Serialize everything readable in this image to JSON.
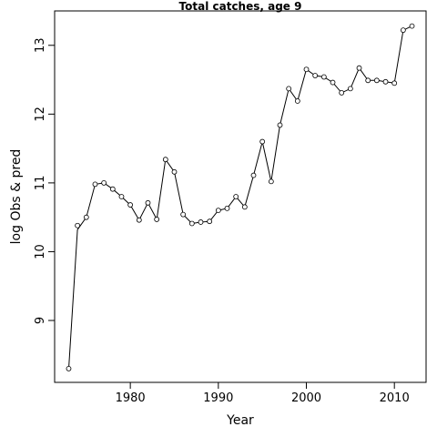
{
  "chart_data": {
    "type": "line",
    "title": "Total catches, age 9",
    "xlabel": "Year",
    "ylabel": "log Obs & pred",
    "xlim": [
      1971.4,
      1973.0
    ],
    "ylim": [
      8.1,
      13.5
    ],
    "x_ticks": [
      1980,
      1990,
      2000,
      2010
    ],
    "y_ticks": [
      9,
      10,
      11,
      12,
      13
    ],
    "x_tick_labels": [
      "1980",
      "1990",
      "2000",
      "2010"
    ],
    "y_tick_labels": [
      "9",
      "10",
      "11",
      "12",
      "13"
    ],
    "grid": false,
    "series": [
      {
        "x": [
          1973,
          1974,
          1975,
          1976,
          1977,
          1978,
          1979,
          1980,
          1981,
          1982,
          1983,
          1984,
          1985,
          1986,
          1987,
          1988,
          1989,
          1990,
          1991,
          1992,
          1993,
          1994,
          1995,
          1996,
          1997,
          1998,
          1999,
          2000,
          2001,
          2002,
          2003,
          2004,
          2005,
          2006,
          2007,
          2008,
          2009,
          2010,
          2011,
          2012
        ],
        "observed": [
          8.3,
          10.38,
          10.5,
          10.98,
          11.0,
          10.91,
          10.8,
          10.68,
          10.46,
          10.71,
          10.47,
          11.34,
          11.16,
          10.54,
          10.41,
          10.43,
          10.44,
          10.6,
          10.63,
          10.8,
          10.65,
          11.11,
          11.6,
          11.02,
          11.84,
          12.37,
          12.19,
          12.65,
          12.56,
          12.54,
          12.46,
          12.31,
          12.37,
          12.67,
          12.49,
          12.49,
          12.47,
          12.45,
          13.22,
          13.28
        ],
        "predicted": [
          8.3,
          10.32,
          10.5,
          10.98,
          11.0,
          10.91,
          10.8,
          10.68,
          10.46,
          10.71,
          10.47,
          11.34,
          11.16,
          10.54,
          10.41,
          10.43,
          10.44,
          10.6,
          10.63,
          10.8,
          10.65,
          11.11,
          11.6,
          11.02,
          11.84,
          12.37,
          12.19,
          12.65,
          12.56,
          12.54,
          12.46,
          12.31,
          12.37,
          12.67,
          12.49,
          12.49,
          12.47,
          12.45,
          13.22,
          13.28
        ]
      }
    ]
  }
}
